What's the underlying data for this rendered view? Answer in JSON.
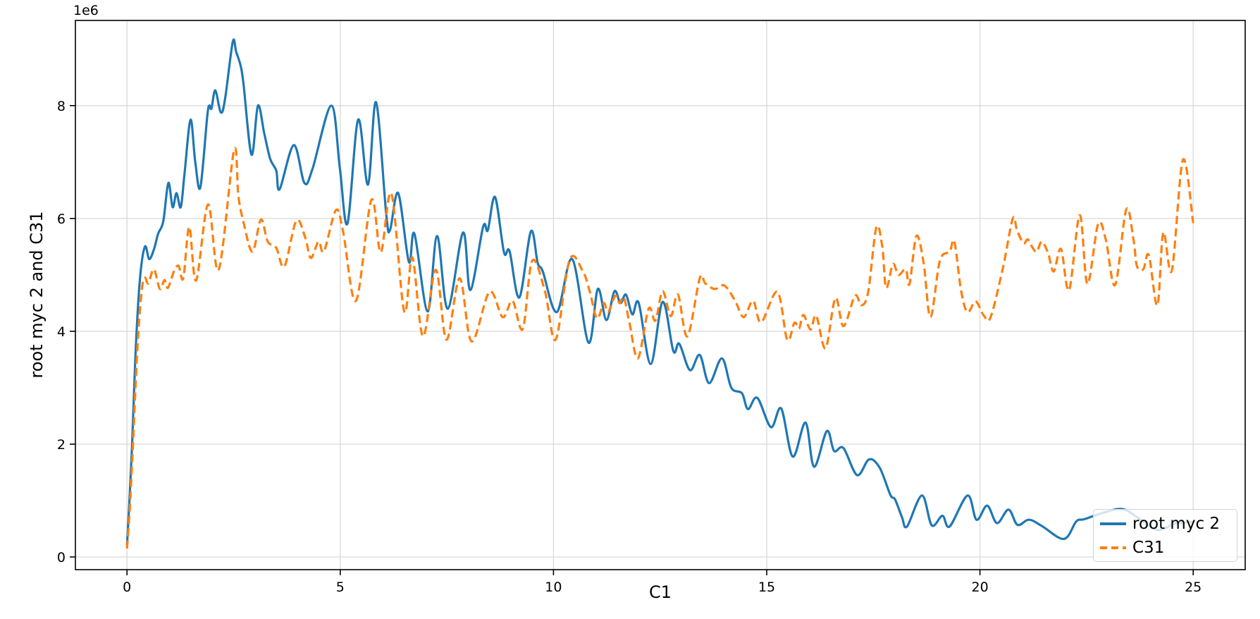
{
  "chart_data": {
    "type": "line",
    "title": "",
    "xlabel": "C1",
    "ylabel": "root myc 2 and C31",
    "y_offset_text": "1e6",
    "y_unit_multiplier": 1000000,
    "x_ticks": [
      0,
      5,
      10,
      15,
      20,
      25
    ],
    "y_ticks_millions": [
      0,
      2,
      4,
      6,
      8
    ],
    "xlim": [
      -1.21,
      26.22
    ],
    "ylim_millions": [
      -0.225,
      9.51
    ],
    "grid": true,
    "grid_color": "#d9d9d9",
    "spine_color": "#000000",
    "legend": {
      "position": "lower right",
      "entries": [
        "root myc 2",
        "C31"
      ]
    },
    "series": [
      {
        "name": "root myc 2",
        "color": "#1f77b4",
        "linestyle": "solid",
        "points_x_vs_millions": [
          [
            0,
            0.2
          ],
          [
            0.05,
            0.9
          ],
          [
            0.12,
            2.0
          ],
          [
            0.2,
            3.6
          ],
          [
            0.3,
            4.9
          ],
          [
            0.42,
            5.5
          ],
          [
            0.52,
            5.28
          ],
          [
            0.63,
            5.45
          ],
          [
            0.73,
            5.73
          ],
          [
            0.85,
            5.95
          ],
          [
            0.97,
            6.63
          ],
          [
            1.07,
            6.2
          ],
          [
            1.16,
            6.45
          ],
          [
            1.26,
            6.2
          ],
          [
            1.35,
            6.8
          ],
          [
            1.49,
            7.75
          ],
          [
            1.6,
            7.0
          ],
          [
            1.72,
            6.55
          ],
          [
            1.88,
            7.8
          ],
          [
            1.93,
            8.0
          ],
          [
            1.98,
            7.95
          ],
          [
            2.07,
            8.27
          ],
          [
            2.2,
            7.88
          ],
          [
            2.3,
            8.12
          ],
          [
            2.48,
            9.13
          ],
          [
            2.56,
            8.95
          ],
          [
            2.66,
            8.72
          ],
          [
            2.73,
            8.4
          ],
          [
            2.92,
            7.13
          ],
          [
            3.07,
            8.0
          ],
          [
            3.22,
            7.5
          ],
          [
            3.36,
            7.05
          ],
          [
            3.5,
            6.85
          ],
          [
            3.58,
            6.52
          ],
          [
            3.91,
            7.3
          ],
          [
            4.16,
            6.63
          ],
          [
            4.35,
            6.88
          ],
          [
            4.79,
            8.0
          ],
          [
            4.99,
            6.9
          ],
          [
            5.17,
            5.91
          ],
          [
            5.42,
            7.75
          ],
          [
            5.65,
            6.6
          ],
          [
            5.84,
            8.06
          ],
          [
            6.08,
            6.06
          ],
          [
            6.17,
            5.8
          ],
          [
            6.36,
            6.45
          ],
          [
            6.61,
            5.23
          ],
          [
            6.74,
            5.73
          ],
          [
            7.05,
            4.35
          ],
          [
            7.27,
            5.69
          ],
          [
            7.52,
            4.4
          ],
          [
            7.88,
            5.75
          ],
          [
            8.05,
            4.73
          ],
          [
            8.35,
            5.85
          ],
          [
            8.46,
            5.79
          ],
          [
            8.63,
            6.38
          ],
          [
            8.84,
            5.4
          ],
          [
            8.97,
            5.42
          ],
          [
            9.2,
            4.6
          ],
          [
            9.47,
            5.77
          ],
          [
            9.63,
            5.21
          ],
          [
            9.75,
            5.06
          ],
          [
            10.08,
            4.34
          ],
          [
            10.44,
            5.28
          ],
          [
            10.82,
            3.8
          ],
          [
            11.04,
            4.75
          ],
          [
            11.24,
            4.2
          ],
          [
            11.43,
            4.71
          ],
          [
            11.57,
            4.5
          ],
          [
            11.7,
            4.65
          ],
          [
            11.85,
            4.3
          ],
          [
            12.0,
            4.5
          ],
          [
            12.28,
            3.42
          ],
          [
            12.56,
            4.52
          ],
          [
            12.81,
            3.65
          ],
          [
            12.95,
            3.78
          ],
          [
            13.2,
            3.31
          ],
          [
            13.43,
            3.58
          ],
          [
            13.65,
            3.08
          ],
          [
            13.95,
            3.52
          ],
          [
            14.17,
            3.0
          ],
          [
            14.42,
            2.9
          ],
          [
            14.56,
            2.62
          ],
          [
            14.78,
            2.82
          ],
          [
            15.1,
            2.3
          ],
          [
            15.34,
            2.63
          ],
          [
            15.61,
            1.78
          ],
          [
            15.91,
            2.38
          ],
          [
            16.11,
            1.6
          ],
          [
            16.41,
            2.23
          ],
          [
            16.58,
            1.88
          ],
          [
            16.8,
            1.93
          ],
          [
            17.12,
            1.45
          ],
          [
            17.4,
            1.73
          ],
          [
            17.65,
            1.58
          ],
          [
            17.9,
            1.1
          ],
          [
            18.01,
            1.02
          ],
          [
            18.17,
            0.71
          ],
          [
            18.29,
            0.54
          ],
          [
            18.64,
            1.09
          ],
          [
            18.87,
            0.56
          ],
          [
            19.12,
            0.73
          ],
          [
            19.29,
            0.54
          ],
          [
            19.71,
            1.09
          ],
          [
            19.92,
            0.66
          ],
          [
            20.17,
            0.91
          ],
          [
            20.4,
            0.6
          ],
          [
            20.67,
            0.84
          ],
          [
            20.88,
            0.57
          ],
          [
            21.15,
            0.66
          ],
          [
            21.45,
            0.55
          ],
          [
            21.97,
            0.32
          ],
          [
            22.26,
            0.63
          ],
          [
            22.45,
            0.67
          ],
          [
            22.92,
            0.79
          ],
          [
            23.33,
            0.85
          ],
          [
            23.68,
            0.71
          ],
          [
            24.01,
            0.53
          ],
          [
            24.24,
            0.48
          ],
          [
            24.57,
            0.59
          ],
          [
            25,
            0.62
          ]
        ]
      },
      {
        "name": "C31",
        "color": "#ff7f0e",
        "linestyle": "dashed",
        "points_x_vs_millions": [
          [
            0,
            0.15
          ],
          [
            0.06,
            0.8
          ],
          [
            0.14,
            2.0
          ],
          [
            0.25,
            3.8
          ],
          [
            0.35,
            4.75
          ],
          [
            0.42,
            4.95
          ],
          [
            0.5,
            4.85
          ],
          [
            0.63,
            5.1
          ],
          [
            0.77,
            4.75
          ],
          [
            0.88,
            4.91
          ],
          [
            0.96,
            4.77
          ],
          [
            1.1,
            5.06
          ],
          [
            1.21,
            5.16
          ],
          [
            1.32,
            4.94
          ],
          [
            1.46,
            5.85
          ],
          [
            1.62,
            4.9
          ],
          [
            1.9,
            6.25
          ],
          [
            2.15,
            5.09
          ],
          [
            2.51,
            7.21
          ],
          [
            2.61,
            6.41
          ],
          [
            2.73,
            5.94
          ],
          [
            2.94,
            5.41
          ],
          [
            3.14,
            5.98
          ],
          [
            3.3,
            5.59
          ],
          [
            3.5,
            5.48
          ],
          [
            3.69,
            5.15
          ],
          [
            3.97,
            5.96
          ],
          [
            4.18,
            5.66
          ],
          [
            4.31,
            5.3
          ],
          [
            4.49,
            5.59
          ],
          [
            4.62,
            5.42
          ],
          [
            4.9,
            6.15
          ],
          [
            5.07,
            5.75
          ],
          [
            5.37,
            4.54
          ],
          [
            5.73,
            6.33
          ],
          [
            5.95,
            5.4
          ],
          [
            6.2,
            6.44
          ],
          [
            6.5,
            4.35
          ],
          [
            6.69,
            5.31
          ],
          [
            6.94,
            3.91
          ],
          [
            7.24,
            5.09
          ],
          [
            7.49,
            3.85
          ],
          [
            7.8,
            4.94
          ],
          [
            8.08,
            3.82
          ],
          [
            8.5,
            4.7
          ],
          [
            8.81,
            4.25
          ],
          [
            9.04,
            4.54
          ],
          [
            9.28,
            4.04
          ],
          [
            9.5,
            5.25
          ],
          [
            9.8,
            4.71
          ],
          [
            10.05,
            3.85
          ],
          [
            10.38,
            5.27
          ],
          [
            10.69,
            5.06
          ],
          [
            10.85,
            4.71
          ],
          [
            11.02,
            4.23
          ],
          [
            11.18,
            4.5
          ],
          [
            11.28,
            4.34
          ],
          [
            11.45,
            4.63
          ],
          [
            11.55,
            4.5
          ],
          [
            11.65,
            4.6
          ],
          [
            11.78,
            4.16
          ],
          [
            11.98,
            3.52
          ],
          [
            12.23,
            4.4
          ],
          [
            12.39,
            4.19
          ],
          [
            12.56,
            4.71
          ],
          [
            12.75,
            4.27
          ],
          [
            12.92,
            4.65
          ],
          [
            13.14,
            3.91
          ],
          [
            13.43,
            4.94
          ],
          [
            13.56,
            4.85
          ],
          [
            13.78,
            4.75
          ],
          [
            14.01,
            4.81
          ],
          [
            14.26,
            4.54
          ],
          [
            14.46,
            4.25
          ],
          [
            14.68,
            4.54
          ],
          [
            14.87,
            4.16
          ],
          [
            15.25,
            4.7
          ],
          [
            15.48,
            3.85
          ],
          [
            15.65,
            4.15
          ],
          [
            15.76,
            4.05
          ],
          [
            15.86,
            4.29
          ],
          [
            16.03,
            4.03
          ],
          [
            16.16,
            4.28
          ],
          [
            16.38,
            3.7
          ],
          [
            16.61,
            4.59
          ],
          [
            16.8,
            4.09
          ],
          [
            17.07,
            4.63
          ],
          [
            17.22,
            4.46
          ],
          [
            17.38,
            4.7
          ],
          [
            17.57,
            5.84
          ],
          [
            17.71,
            5.5
          ],
          [
            17.8,
            4.77
          ],
          [
            17.96,
            5.19
          ],
          [
            18.09,
            5.0
          ],
          [
            18.26,
            5.1
          ],
          [
            18.35,
            4.84
          ],
          [
            18.51,
            5.69
          ],
          [
            18.68,
            5.21
          ],
          [
            18.84,
            4.25
          ],
          [
            19.06,
            5.25
          ],
          [
            19.29,
            5.41
          ],
          [
            19.4,
            5.59
          ],
          [
            19.56,
            4.71
          ],
          [
            19.71,
            4.34
          ],
          [
            19.9,
            4.53
          ],
          [
            20.09,
            4.28
          ],
          [
            20.25,
            4.25
          ],
          [
            20.54,
            5.13
          ],
          [
            20.77,
            6.0
          ],
          [
            20.87,
            5.79
          ],
          [
            21.02,
            5.56
          ],
          [
            21.12,
            5.63
          ],
          [
            21.22,
            5.5
          ],
          [
            21.33,
            5.41
          ],
          [
            21.45,
            5.59
          ],
          [
            21.6,
            5.38
          ],
          [
            21.73,
            5.06
          ],
          [
            21.9,
            5.46
          ],
          [
            22.09,
            4.73
          ],
          [
            22.34,
            6.06
          ],
          [
            22.52,
            4.84
          ],
          [
            22.77,
            5.9
          ],
          [
            22.95,
            5.63
          ],
          [
            23.17,
            4.82
          ],
          [
            23.43,
            6.16
          ],
          [
            23.6,
            5.63
          ],
          [
            23.68,
            5.16
          ],
          [
            23.83,
            5.1
          ],
          [
            23.96,
            5.35
          ],
          [
            24.16,
            4.46
          ],
          [
            24.3,
            5.75
          ],
          [
            24.5,
            5.08
          ],
          [
            24.76,
            7.04
          ],
          [
            25,
            5.92
          ]
        ]
      }
    ]
  }
}
